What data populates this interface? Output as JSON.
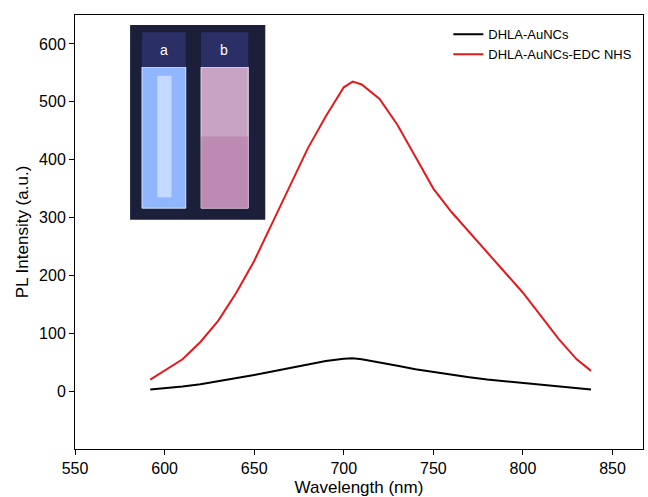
{
  "chart_data": {
    "type": "line",
    "x_label": "Wavelength (nm)",
    "y_label": "PL Intensity (a.u.)",
    "x": [
      592,
      600,
      610,
      620,
      630,
      640,
      650,
      660,
      670,
      680,
      690,
      700,
      705,
      710,
      720,
      730,
      740,
      750,
      760,
      770,
      780,
      790,
      800,
      810,
      820,
      830,
      838
    ],
    "series": [
      {
        "name": "DHLA-AuNCs",
        "color": "#000000",
        "values": [
          3,
          5,
          8,
          12,
          17,
          22,
          28,
          34,
          40,
          46,
          52,
          56,
          57,
          55,
          50,
          44,
          38,
          33,
          28,
          24,
          20,
          17,
          14,
          11,
          8,
          5,
          3
        ]
      },
      {
        "name": "DHLA-AuNCs-EDC NHS",
        "color": "#e31a1c",
        "values": [
          20,
          35,
          55,
          85,
          122,
          170,
          225,
          290,
          355,
          420,
          475,
          525,
          535,
          530,
          505,
          460,
          405,
          350,
          310,
          275,
          240,
          205,
          170,
          130,
          90,
          55,
          35
        ]
      }
    ],
    "xlim": [
      550,
      867
    ],
    "xticks": [
      550,
      600,
      650,
      700,
      750,
      800,
      850
    ],
    "ylim": [
      -100,
      650
    ],
    "yticks": [
      0,
      100,
      200,
      300,
      400,
      500,
      600
    ],
    "grid": false,
    "legend": "top right",
    "annotations": [
      "a",
      "b"
    ]
  }
}
